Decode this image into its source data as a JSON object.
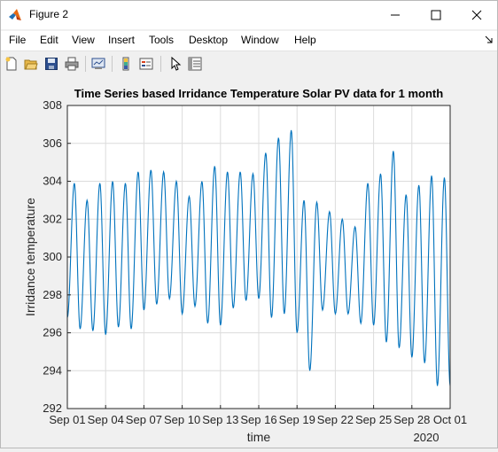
{
  "window": {
    "title": "Figure 2"
  },
  "menu": [
    "File",
    "Edit",
    "View",
    "Insert",
    "Tools",
    "Desktop",
    "Window",
    "Help"
  ],
  "toolbar": [
    "new-figure-icon",
    "open-file-icon",
    "save-icon",
    "print-icon",
    "link-plot-icon",
    "colorbar-icon",
    "legend-icon",
    "pointer-icon",
    "property-inspector-icon"
  ],
  "colors": {
    "line": "#0072bd",
    "grid": "#dcdcdc"
  },
  "chart_data": {
    "type": "line",
    "title": "Time Series based Irridance Temperature Solar PV data for 1 month",
    "xlabel": "time",
    "ylabel": "Irridance temperature",
    "x_year_label": "2020",
    "xlim": [
      "2020-09-01",
      "2020-10-01"
    ],
    "ylim": [
      292,
      308
    ],
    "grid": true,
    "x_ticks": [
      "Sep 01",
      "Sep 04",
      "Sep 07",
      "Sep 10",
      "Sep 13",
      "Sep 16",
      "Sep 19",
      "Sep 22",
      "Sep 25",
      "Sep 28",
      "Oct 01"
    ],
    "y_ticks": [
      292,
      294,
      296,
      298,
      300,
      302,
      304,
      306,
      308
    ],
    "series": [
      {
        "x": [
          "2020-09-01",
          "2020-09-02",
          "2020-09-03",
          "2020-09-04",
          "2020-09-05",
          "2020-09-06",
          "2020-09-07",
          "2020-09-08",
          "2020-09-09",
          "2020-09-10",
          "2020-09-11",
          "2020-09-12",
          "2020-09-13",
          "2020-09-14",
          "2020-09-15",
          "2020-09-16",
          "2020-09-17",
          "2020-09-18",
          "2020-09-19",
          "2020-09-20",
          "2020-09-21",
          "2020-09-22",
          "2020-09-23",
          "2020-09-24",
          "2020-09-25",
          "2020-09-26",
          "2020-09-27",
          "2020-09-28",
          "2020-09-29",
          "2020-09-30"
        ],
        "daily_max": [
          303.9,
          303.0,
          303.9,
          304.0,
          303.9,
          304.5,
          304.6,
          304.5,
          304.0,
          303.2,
          304.0,
          304.8,
          304.5,
          304.5,
          304.4,
          305.5,
          306.3,
          306.7,
          303.0,
          302.9,
          302.4,
          302.0,
          301.6,
          303.9,
          304.4,
          305.6,
          303.3,
          303.8,
          304.3,
          304.2
        ],
        "daily_min": [
          296.8,
          296.2,
          296.1,
          295.9,
          296.3,
          296.2,
          297.2,
          297.5,
          297.8,
          297.0,
          297.4,
          296.5,
          296.4,
          297.3,
          297.7,
          297.8,
          296.8,
          297.0,
          296.0,
          294.0,
          297.2,
          297.0,
          297.0,
          296.5,
          296.4,
          295.5,
          295.2,
          294.7,
          294.4,
          293.2
        ]
      }
    ]
  }
}
